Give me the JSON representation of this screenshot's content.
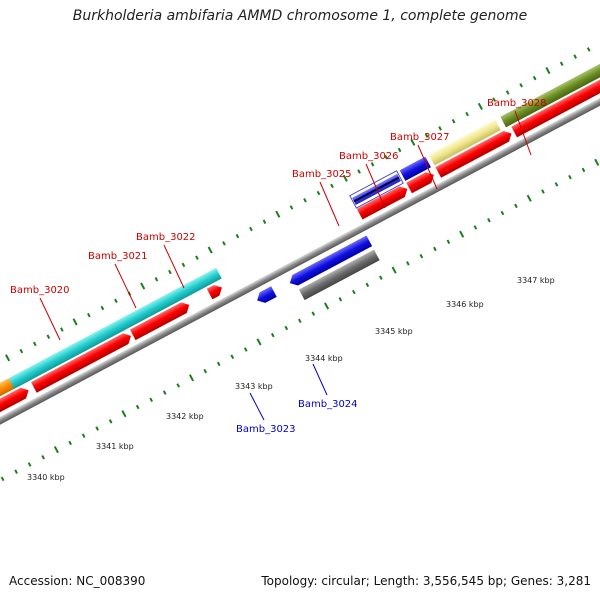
{
  "title": "Burkholderia ambifaria AMMD chromosome 1, complete genome",
  "footer": {
    "accession": "Accession: NC_008390",
    "topology": "Topology: circular; Length: 3,556,545 bp; Genes: 3,281"
  },
  "scale_labels": [
    "3340 kbp",
    "3341 kbp",
    "3342 kbp",
    "3343 kbp",
    "3344 kbp",
    "3345 kbp",
    "3346 kbp",
    "3347 kbp"
  ],
  "gene_labels": {
    "red": [
      "Bamb_3020",
      "Bamb_3021",
      "Bamb_3022",
      "Bamb_3025",
      "Bamb_3026",
      "Bamb_3027",
      "Bamb_3028"
    ],
    "blue": [
      "Bamb_3023",
      "Bamb_3024"
    ]
  },
  "colors": {
    "red_label": "#cc0000",
    "blue_label": "#0000cc",
    "tick_green": "#1a7f1a",
    "cds_red": "#ff0000",
    "feature_cyan": "#22cccc",
    "feature_orange": "#ff8c00",
    "feature_blue": "#1010e0",
    "feature_grey": "#666666",
    "feature_khaki": "#f0e68c",
    "feature_olive": "#6b8e23",
    "backbone_grey": "#888888"
  }
}
